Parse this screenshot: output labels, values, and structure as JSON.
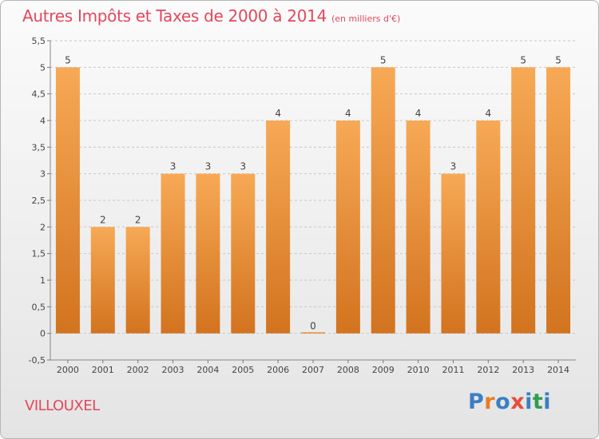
{
  "title": "Autres Impôts et Taxes de 2000 à 2014",
  "subtitle": "(en milliers d'€)",
  "commune": "VILLOUXEL",
  "logo_text": "Proxiti",
  "colors": {
    "title": "#e2485c",
    "bar_light": "#f7a955",
    "bar_dark": "#d2731f",
    "grid": "#c8c8c8",
    "axis_text": "#444444",
    "logo_letters": [
      "#3b7fc4",
      "#e67e22",
      "#3b7fc4",
      "#e74c3c",
      "#3b7fc4",
      "#2e9e4f",
      "#3b7fc4"
    ]
  },
  "chart_data": {
    "type": "bar",
    "categories": [
      "2000",
      "2001",
      "2002",
      "2003",
      "2004",
      "2005",
      "2006",
      "2007",
      "2008",
      "2009",
      "2010",
      "2011",
      "2012",
      "2013",
      "2014"
    ],
    "values": [
      5,
      2,
      2,
      3,
      3,
      3,
      4,
      0,
      4,
      5,
      4,
      3,
      4,
      5,
      5
    ],
    "data_labels": [
      "5",
      "2",
      "2",
      "3",
      "3",
      "3",
      "4",
      "0",
      "4",
      "5",
      "4",
      "3",
      "4",
      "5",
      "5"
    ],
    "title": "Autres Impôts et Taxes de 2000 à 2014",
    "subtitle": "(en milliers d'€)",
    "xlabel": "",
    "ylabel": "",
    "ylim": [
      -0.5,
      5.5
    ],
    "yticks": [
      -0.5,
      0,
      0.5,
      1,
      1.5,
      2,
      2.5,
      3,
      3.5,
      4,
      4.5,
      5,
      5.5
    ],
    "ytick_labels": [
      "-0,5",
      "0",
      "0,5",
      "1",
      "1,5",
      "2",
      "2,5",
      "3",
      "3,5",
      "4",
      "4,5",
      "5",
      "5,5"
    ],
    "grid": "horizontal dashed",
    "legend": "none"
  }
}
